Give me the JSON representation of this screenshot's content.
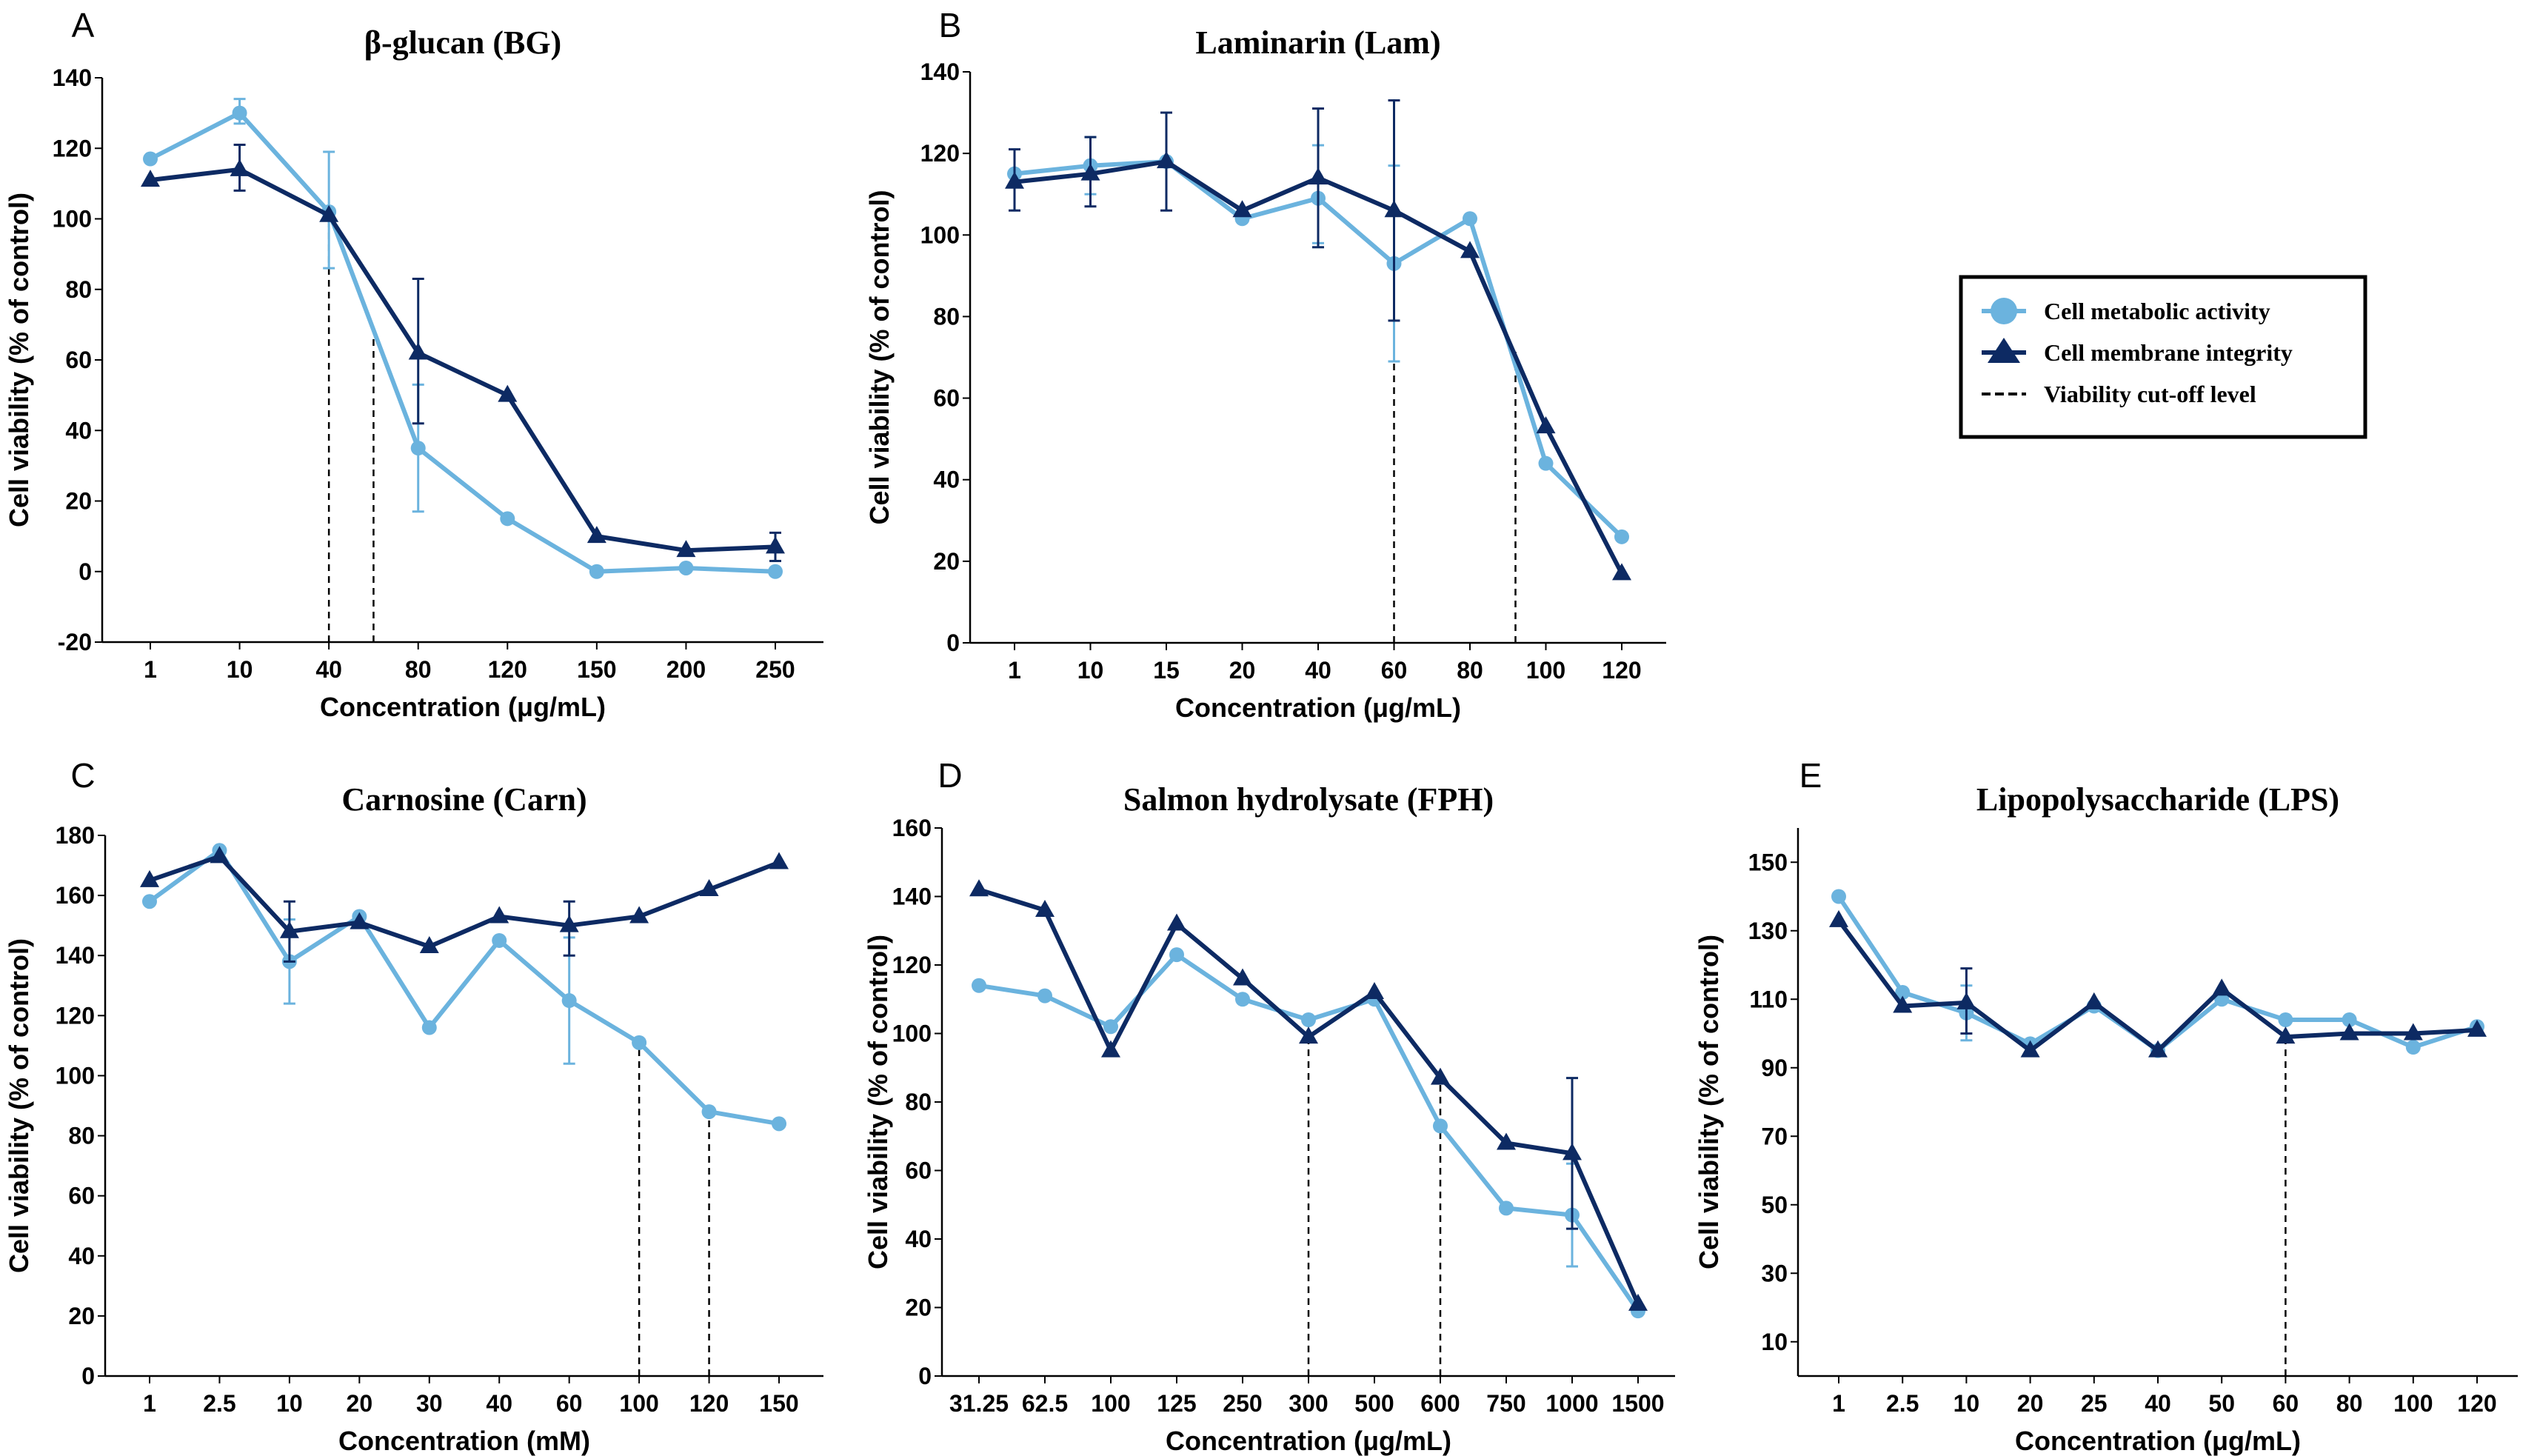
{
  "colors": {
    "metabolic": "#6BB3DE",
    "membrane": "#0D2A63",
    "cutoff": "#000000"
  },
  "legend": {
    "entries": [
      {
        "label": "Cell metabolic activity",
        "marker": "circle",
        "color": "#6BB3DE"
      },
      {
        "label": "Cell membrane integrity",
        "marker": "triangle",
        "color": "#0D2A63"
      },
      {
        "label": "Viability cut-off level",
        "marker": "dashed-line",
        "color": "#000000"
      }
    ]
  },
  "chart_data": [
    {
      "panel": "A",
      "type": "line",
      "title": "β-glucan (BG)",
      "xlabel": "Concentration (μg/mL)",
      "ylabel": "Cell viability (% of control)",
      "categories": [
        "1",
        "10",
        "40",
        "80",
        "120",
        "150",
        "200",
        "250"
      ],
      "ylim": [
        -20,
        140
      ],
      "yticks": [
        -20,
        0,
        20,
        40,
        60,
        80,
        100,
        120,
        140
      ],
      "series": [
        {
          "name": "Cell metabolic activity",
          "values": [
            117,
            130,
            102,
            35,
            15,
            0,
            1,
            0
          ],
          "errors": [
            null,
            [
              127,
              134
            ],
            [
              86,
              119
            ],
            [
              17,
              53
            ],
            null,
            null,
            null,
            null
          ]
        },
        {
          "name": "Cell membrane integrity",
          "values": [
            111,
            114,
            101,
            62,
            50,
            10,
            6,
            7
          ],
          "errors": [
            null,
            [
              108,
              121
            ],
            null,
            [
              42,
              83
            ],
            null,
            null,
            null,
            [
              3,
              11
            ]
          ]
        }
      ],
      "cutoffs": [
        {
          "pos": 2,
          "top": 101
        },
        {
          "pos": 2.5,
          "top": 66
        }
      ]
    },
    {
      "panel": "B",
      "type": "line",
      "title": "Laminarin (Lam)",
      "xlabel": "Concentration (μg/mL)",
      "ylabel": "Cell viability (% of control)",
      "categories": [
        "1",
        "10",
        "15",
        "20",
        "40",
        "60",
        "80",
        "100",
        "120"
      ],
      "ylim": [
        0,
        140
      ],
      "yticks": [
        0,
        20,
        40,
        60,
        80,
        100,
        120,
        140
      ],
      "series": [
        {
          "name": "Cell metabolic activity",
          "values": [
            115,
            117,
            118,
            104,
            109,
            93,
            104,
            44,
            26
          ],
          "errors": [
            null,
            [
              110,
              124
            ],
            null,
            null,
            [
              98,
              122
            ],
            [
              69,
              117
            ],
            null,
            null,
            null
          ]
        },
        {
          "name": "Cell membrane integrity",
          "values": [
            113,
            115,
            118,
            106,
            114,
            106,
            96,
            53,
            17
          ],
          "errors": [
            [
              106,
              121
            ],
            [
              107,
              124
            ],
            [
              106,
              130
            ],
            null,
            [
              97,
              131
            ],
            [
              79,
              133
            ],
            null,
            null,
            null
          ]
        }
      ],
      "cutoffs": [
        {
          "pos": 5,
          "top": 106
        },
        {
          "pos": 6.6,
          "top": 72
        }
      ]
    },
    {
      "panel": "C",
      "type": "line",
      "title": "Carnosine (Carn)",
      "xlabel": "Concentration (mM)",
      "ylabel": "Cell viability (% of control)",
      "categories": [
        "1",
        "2.5",
        "10",
        "20",
        "30",
        "40",
        "60",
        "100",
        "120",
        "150"
      ],
      "ylim": [
        0,
        180
      ],
      "yticks": [
        0,
        20,
        40,
        60,
        80,
        100,
        120,
        140,
        160,
        180
      ],
      "series": [
        {
          "name": "Cell metabolic activity",
          "values": [
            158,
            175,
            138,
            153,
            116,
            145,
            125,
            111,
            88,
            84
          ],
          "errors": [
            null,
            null,
            [
              124,
              152
            ],
            null,
            null,
            null,
            [
              104,
              146
            ],
            null,
            null,
            null
          ]
        },
        {
          "name": "Cell membrane integrity",
          "values": [
            165,
            173,
            148,
            151,
            143,
            153,
            150,
            153,
            162,
            171
          ],
          "errors": [
            null,
            null,
            [
              138,
              158
            ],
            null,
            null,
            null,
            [
              140,
              158
            ],
            null,
            null,
            null
          ]
        }
      ],
      "cutoffs": [
        {
          "pos": 7,
          "top": 111
        },
        {
          "pos": 8,
          "top": 88
        }
      ]
    },
    {
      "panel": "D",
      "type": "line",
      "title": "Salmon hydrolysate (FPH)",
      "xlabel": "Concentration (μg/mL)",
      "ylabel": "Cell viability (% of control)",
      "categories": [
        "31.25",
        "62.5",
        "100",
        "125",
        "250",
        "300",
        "500",
        "600",
        "750",
        "1000",
        "1500"
      ],
      "ylim": [
        0,
        160
      ],
      "yticks": [
        0,
        20,
        40,
        60,
        80,
        100,
        120,
        140,
        160
      ],
      "series": [
        {
          "name": "Cell metabolic activity",
          "values": [
            114,
            111,
            102,
            123,
            110,
            104,
            110,
            73,
            49,
            47,
            19
          ],
          "errors": [
            null,
            null,
            null,
            null,
            null,
            null,
            null,
            null,
            null,
            [
              32,
              62
            ],
            null
          ]
        },
        {
          "name": "Cell membrane integrity",
          "values": [
            142,
            136,
            95,
            132,
            116,
            99,
            112,
            87,
            68,
            65,
            21
          ],
          "errors": [
            null,
            null,
            null,
            null,
            null,
            null,
            null,
            null,
            null,
            [
              43,
              87
            ],
            null
          ]
        }
      ],
      "cutoffs": [
        {
          "pos": 5,
          "top": 99
        },
        {
          "pos": 7,
          "top": 87
        }
      ]
    },
    {
      "panel": "E",
      "type": "line",
      "title": "Lipopolysaccharide (LPS)",
      "xlabel": "Concentration (μg/mL)",
      "ylabel": "Cell viability (% of control)",
      "categories": [
        "1",
        "2.5",
        "10",
        "20",
        "25",
        "40",
        "50",
        "60",
        "80",
        "100",
        "120"
      ],
      "ylim": [
        0,
        160
      ],
      "yticks": [
        10,
        30,
        50,
        70,
        90,
        110,
        130,
        150
      ],
      "series": [
        {
          "name": "Cell metabolic activity",
          "values": [
            140,
            112,
            106,
            97,
            108,
            95,
            110,
            104,
            104,
            96,
            102
          ],
          "errors": [
            null,
            null,
            [
              98,
              114
            ],
            null,
            null,
            null,
            null,
            null,
            null,
            null,
            null
          ]
        },
        {
          "name": "Cell membrane integrity",
          "values": [
            133,
            108,
            109,
            95,
            109,
            95,
            113,
            99,
            100,
            100,
            101
          ],
          "errors": [
            null,
            null,
            [
              100,
              119
            ],
            null,
            null,
            null,
            null,
            null,
            null,
            null,
            null
          ]
        }
      ],
      "cutoffs": [
        {
          "pos": 7,
          "top": 99
        }
      ]
    }
  ]
}
